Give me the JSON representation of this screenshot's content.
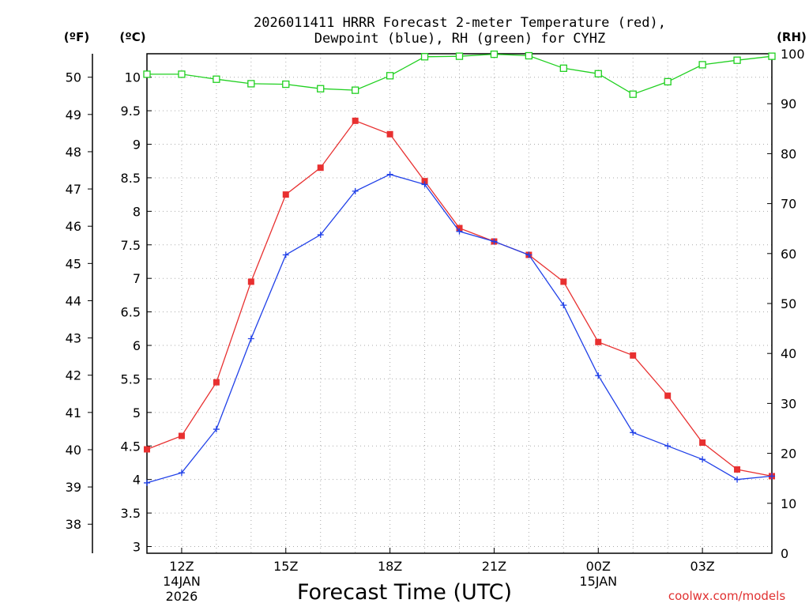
{
  "chart_data": {
    "type": "line",
    "title_line1": "2026011411 HRRR Forecast 2-meter Temperature (red),",
    "title_line2": "Dewpoint (blue), RH (green) for CYHZ",
    "xlabel": "Forecast Time (UTC)",
    "credit": "coolwx.com/models",
    "units": {
      "fahrenheit": "(ºF)",
      "celsius": "(ºC)",
      "rh": "(RH)"
    },
    "x_hours": [
      11,
      12,
      13,
      14,
      15,
      16,
      17,
      18,
      19,
      20,
      21,
      22,
      23,
      24,
      25,
      26,
      27,
      28,
      29
    ],
    "xlim": [
      11,
      29
    ],
    "x_ticks": [
      {
        "hour": 12,
        "label": "12Z",
        "date": "14JAN",
        "year": "2026"
      },
      {
        "hour": 15,
        "label": "15Z",
        "date": "",
        "year": ""
      },
      {
        "hour": 18,
        "label": "18Z",
        "date": "",
        "year": ""
      },
      {
        "hour": 21,
        "label": "21Z",
        "date": "",
        "year": ""
      },
      {
        "hour": 24,
        "label": "00Z",
        "date": "15JAN",
        "year": ""
      },
      {
        "hour": 27,
        "label": "03Z",
        "date": "",
        "year": ""
      }
    ],
    "celsius_lim": [
      2.9,
      10.35
    ],
    "celsius_ticks": [
      "3",
      "3.5",
      "4",
      "4.5",
      "5",
      "5.5",
      "6",
      "6.5",
      "7",
      "7.5",
      "8",
      "8.5",
      "9",
      "9.5",
      "10"
    ],
    "fahrenheit_ticks": [
      "38",
      "39",
      "40",
      "41",
      "42",
      "43",
      "44",
      "45",
      "46",
      "47",
      "48",
      "49",
      "50"
    ],
    "rh_lim": [
      0,
      100
    ],
    "rh_ticks": [
      "0",
      "10",
      "20",
      "30",
      "40",
      "50",
      "60",
      "70",
      "80",
      "90",
      "100"
    ],
    "series": [
      {
        "name": "Temperature",
        "color": "#e83030",
        "marker": "filled-square",
        "values": [
          4.45,
          4.65,
          5.45,
          6.95,
          8.25,
          8.65,
          9.35,
          9.15,
          8.45,
          7.75,
          7.55,
          7.35,
          6.95,
          6.05,
          5.85,
          5.25,
          4.55,
          4.15,
          4.05
        ]
      },
      {
        "name": "Dewpoint",
        "color": "#2040e8",
        "marker": "plus",
        "values": [
          3.95,
          4.1,
          4.75,
          6.1,
          7.35,
          7.65,
          8.3,
          8.55,
          8.4,
          7.7,
          7.55,
          7.35,
          6.6,
          5.55,
          4.7,
          4.5,
          4.3,
          4.0,
          4.05
        ]
      },
      {
        "name": "RH",
        "color": "#20d020",
        "marker": "open-square",
        "axis": "rh",
        "values": [
          95.9,
          95.9,
          94.9,
          94.0,
          93.9,
          93.0,
          92.7,
          95.6,
          99.4,
          99.5,
          99.9,
          99.6,
          97.1,
          96.0,
          91.9,
          94.4,
          97.8,
          98.7,
          99.5
        ]
      }
    ]
  }
}
